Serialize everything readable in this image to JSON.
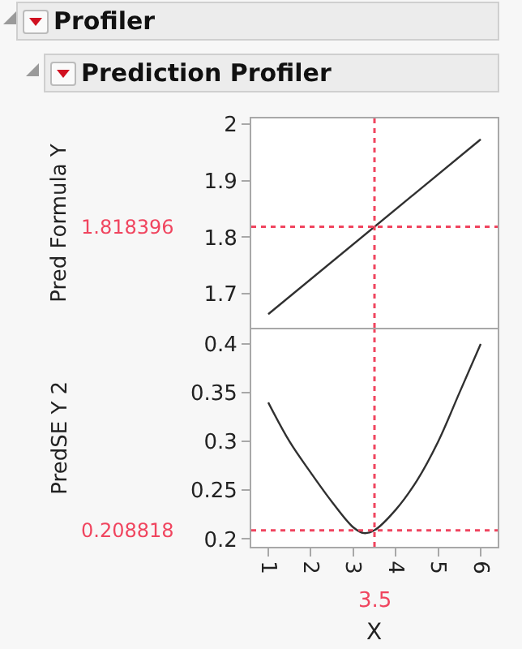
{
  "chart_data": [
    {
      "type": "line",
      "title": "Profiler",
      "subtitle": "Prediction Profiler",
      "ylabel": "Pred Formula Y",
      "x": [
        1,
        6
      ],
      "series": [
        {
          "color": "#303030",
          "values": [
            1.664,
            1.973
          ]
        }
      ],
      "xlim": [
        0.6,
        6.4
      ],
      "xticks": [
        1,
        2,
        3,
        4,
        5,
        6
      ],
      "ylim": [
        1.64,
        2.01
      ],
      "yticks": [
        1.7,
        1.8,
        1.9,
        2
      ],
      "tick_labels": "y",
      "grid": false,
      "ref_lines": [
        {
          "axis": "x",
          "value": 3.5,
          "color": "#f0455f",
          "line_style": "dotted"
        },
        {
          "axis": "y",
          "value": 1.818396,
          "label": "1.818396",
          "color": "#f0455f",
          "line_style": "dotted"
        }
      ]
    },
    {
      "type": "line",
      "ylabel": "PredSE Y 2",
      "xlabel": "X",
      "x": [
        1,
        1.5,
        2,
        2.5,
        3,
        3.25,
        3.5,
        4,
        4.5,
        5,
        5.5,
        6
      ],
      "series": [
        {
          "color": "#303030",
          "values": [
            0.34,
            0.3,
            0.268,
            0.238,
            0.212,
            0.206,
            0.209,
            0.23,
            0.26,
            0.3,
            0.35,
            0.4
          ]
        }
      ],
      "xlim": [
        0.6,
        6.4
      ],
      "xticks": [
        1,
        2,
        3,
        4,
        5,
        6
      ],
      "ylim": [
        0.192,
        0.415
      ],
      "yticks": [
        0.2,
        0.25,
        0.3,
        0.35,
        0.4
      ],
      "grid": false,
      "ref_lines": [
        {
          "axis": "x",
          "value": 3.5,
          "label": "3.5",
          "color": "#f0455f",
          "line_style": "dotted"
        },
        {
          "axis": "y",
          "value": 0.208818,
          "label": "0.208818",
          "color": "#f0455f",
          "line_style": "dotted"
        }
      ]
    }
  ]
}
